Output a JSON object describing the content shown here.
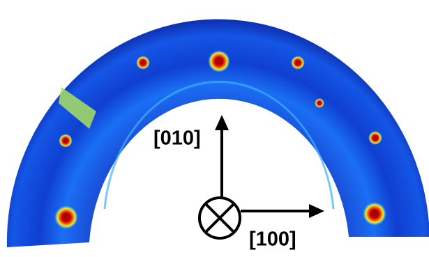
{
  "axes": {
    "vertical_label": "[010]",
    "horizontal_label": "[100]"
  }
}
